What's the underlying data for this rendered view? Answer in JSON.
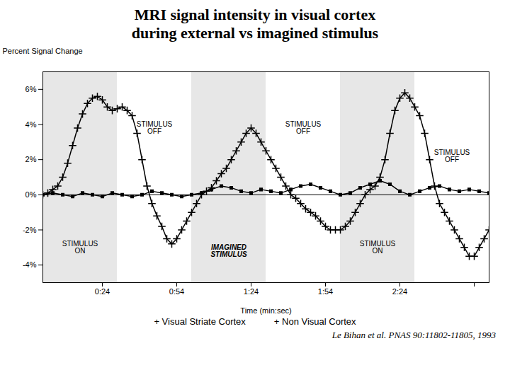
{
  "chart_data": {
    "type": "line",
    "title": "MRI signal intensity in visual cortex\nduring external vs imagined stimulus",
    "caption": "Le Bihan et al. PNAS 90:11802-11805, 1993",
    "xlabel": "Time (min:sec)",
    "ylabel": "Percent Signal Change",
    "xlim": [
      0,
      180
    ],
    "ylim": [
      -5,
      7
    ],
    "xticks": [
      {
        "value": 24,
        "label": "0:24"
      },
      {
        "value": 54,
        "label": "0:54"
      },
      {
        "value": 84,
        "label": "1:24"
      },
      {
        "value": 114,
        "label": "1:54"
      },
      {
        "value": 144,
        "label": "2:24"
      },
      {
        "value": 174,
        "label": null
      }
    ],
    "yticks": [
      {
        "value": -4,
        "label": "-4%"
      },
      {
        "value": -2,
        "label": "-2%"
      },
      {
        "value": 0,
        "label": "0%"
      },
      {
        "value": 2,
        "label": "2%"
      },
      {
        "value": 4,
        "label": "4%"
      },
      {
        "value": 6,
        "label": "6%"
      }
    ],
    "grid": false,
    "legend": "bottom",
    "shaded_regions": [
      [
        0,
        30
      ],
      [
        60,
        90
      ],
      [
        120,
        150
      ]
    ],
    "annotations": [
      {
        "text": "STIMULUS\nON",
        "x": 15,
        "y": -3.0,
        "style": "normal"
      },
      {
        "text": "STIMULUS\nOFF",
        "x": 45,
        "y": 3.8,
        "style": "normal"
      },
      {
        "text": "IMAGINED\nSTIMULUS",
        "x": 75,
        "y": -3.2,
        "style": "italic"
      },
      {
        "text": "STIMULUS\nOFF",
        "x": 105,
        "y": 3.8,
        "style": "normal"
      },
      {
        "text": "STIMULUS\nON",
        "x": 135,
        "y": -3.0,
        "style": "normal"
      },
      {
        "text": "STIMULUS\nOFF",
        "x": 165,
        "y": 2.2,
        "style": "normal"
      }
    ],
    "series": [
      {
        "name": "+ Visual Striate Cortex",
        "color": "black",
        "marker": "plus",
        "x": [
          0,
          2,
          4,
          6,
          8,
          10,
          12,
          14,
          16,
          18,
          20,
          22,
          24,
          26,
          28,
          30,
          32,
          34,
          36,
          38,
          40,
          42,
          44,
          46,
          48,
          50,
          52,
          54,
          56,
          58,
          60,
          62,
          64,
          66,
          68,
          70,
          72,
          74,
          76,
          78,
          80,
          82,
          84,
          86,
          88,
          90,
          92,
          94,
          96,
          98,
          100,
          102,
          104,
          106,
          108,
          110,
          112,
          114,
          116,
          118,
          120,
          122,
          124,
          126,
          128,
          130,
          132,
          134,
          136,
          138,
          140,
          142,
          144,
          146,
          148,
          150,
          152,
          154,
          156,
          158,
          160,
          162,
          164,
          166,
          168,
          170,
          172,
          174,
          176,
          178,
          180
        ],
        "values": [
          0.0,
          0.1,
          0.3,
          0.5,
          1.0,
          1.8,
          2.8,
          3.8,
          4.6,
          5.2,
          5.5,
          5.6,
          5.4,
          5.0,
          4.8,
          4.9,
          5.0,
          4.8,
          4.5,
          3.5,
          2.0,
          0.5,
          -0.5,
          -1.2,
          -1.8,
          -2.5,
          -2.8,
          -2.5,
          -2.0,
          -1.5,
          -1.0,
          -0.5,
          0.0,
          0.2,
          0.4,
          0.8,
          1.2,
          1.5,
          2.0,
          2.5,
          3.0,
          3.5,
          3.8,
          3.5,
          3.0,
          2.5,
          2.0,
          1.5,
          1.0,
          0.5,
          0.0,
          -0.2,
          -0.5,
          -0.8,
          -1.0,
          -1.2,
          -1.5,
          -1.8,
          -2.0,
          -2.0,
          -2.0,
          -1.8,
          -1.5,
          -1.0,
          -0.5,
          0.0,
          0.3,
          0.5,
          1.0,
          2.0,
          3.5,
          4.8,
          5.5,
          5.8,
          5.5,
          5.0,
          4.5,
          3.5,
          2.0,
          0.5,
          -0.5,
          -1.0,
          -1.5,
          -2.0,
          -2.5,
          -3.0,
          -3.5,
          -3.5,
          -3.0,
          -2.5,
          -2.0
        ]
      },
      {
        "name": "+ Non Visual Cortex",
        "color": "black",
        "marker": "square",
        "x": [
          0,
          4,
          8,
          12,
          16,
          20,
          24,
          28,
          32,
          36,
          40,
          44,
          48,
          52,
          56,
          60,
          64,
          68,
          72,
          76,
          80,
          84,
          88,
          92,
          96,
          100,
          104,
          108,
          112,
          116,
          120,
          124,
          128,
          132,
          136,
          140,
          144,
          148,
          152,
          156,
          160,
          164,
          168,
          172,
          176,
          180
        ],
        "values": [
          0.0,
          0.1,
          0.0,
          -0.1,
          0.1,
          0.0,
          -0.1,
          0.1,
          0.0,
          -0.1,
          0.0,
          0.2,
          0.1,
          0.0,
          -0.1,
          0.0,
          0.1,
          0.3,
          0.5,
          0.4,
          0.2,
          0.1,
          0.3,
          0.2,
          0.1,
          0.3,
          0.5,
          0.6,
          0.4,
          0.2,
          0.0,
          0.1,
          0.4,
          0.6,
          0.8,
          0.6,
          0.2,
          0.0,
          0.2,
          0.4,
          0.5,
          0.3,
          0.2,
          0.3,
          0.2,
          0.1
        ]
      }
    ]
  }
}
